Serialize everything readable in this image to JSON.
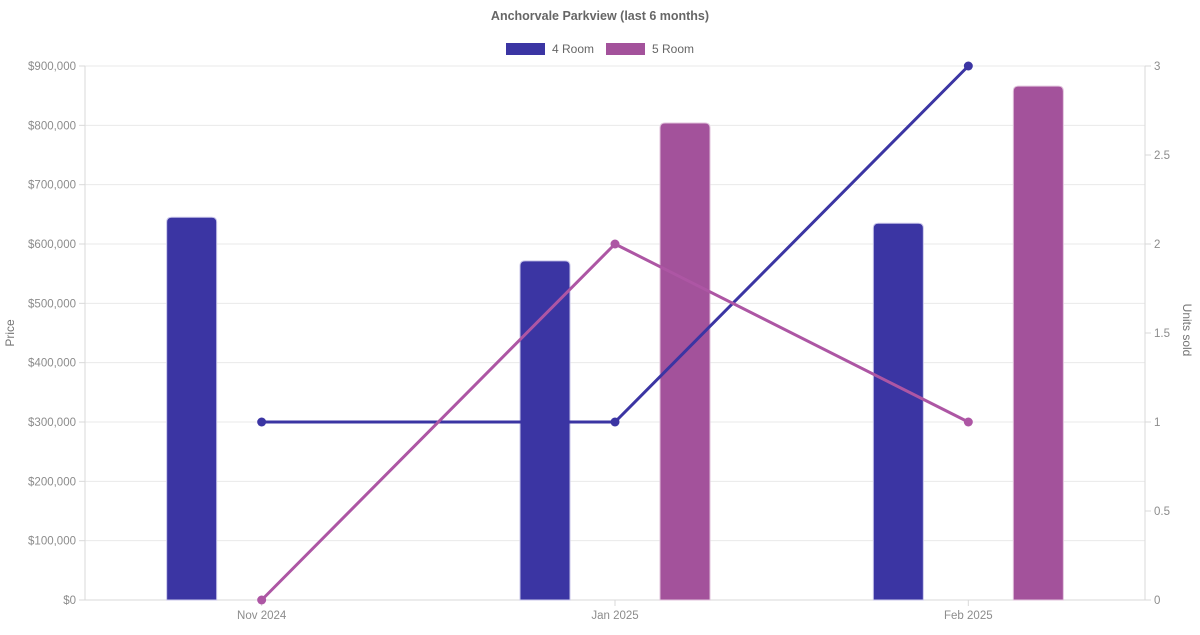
{
  "chart_data": {
    "type": "bar",
    "subtype": "combo-bar-line-dual-axis",
    "title": "Anchorvale Parkview (last 6 months)",
    "categories": [
      "Nov 2024",
      "Jan 2025",
      "Feb 2025"
    ],
    "series": [
      {
        "name": "4 Room",
        "render": "bar",
        "axis": "left",
        "values": [
          645000,
          571500,
          635000
        ],
        "color": "#3B35A3",
        "border_color": "#c9c6ea"
      },
      {
        "name": "5 Room",
        "render": "bar",
        "axis": "left",
        "values": [
          null,
          804000,
          866000
        ],
        "color": "#A3529B",
        "border_color": "#e0c2db"
      },
      {
        "name": "4 Room",
        "render": "line",
        "axis": "right",
        "values": [
          1,
          1,
          3
        ],
        "color": "#3B35A3"
      },
      {
        "name": "5 Room",
        "render": "line",
        "axis": "right",
        "values": [
          0,
          2,
          1
        ],
        "color": "#AD56A4"
      }
    ],
    "legend": [
      {
        "label": "4 Room",
        "color": "#3B35A3"
      },
      {
        "label": "5 Room",
        "color": "#A3529B"
      }
    ],
    "legend_position": "top",
    "ylabel_left": "Price",
    "ylabel_right": "Units sold",
    "ylim_left": [
      0,
      900000
    ],
    "ylim_right": [
      0,
      3
    ],
    "yticks_left": [
      "$0",
      "$100,000",
      "$200,000",
      "$300,000",
      "$400,000",
      "$500,000",
      "$600,000",
      "$700,000",
      "$800,000",
      "$900,000"
    ],
    "ytick_step_left": 100000,
    "yticks_right": [
      "0",
      "0.5",
      "1",
      "1.5",
      "2",
      "2.5",
      "3"
    ],
    "ytick_step_right": 0.5,
    "grid": "horizontal",
    "colors": {
      "background": "#ffffff",
      "grid_line": "#eaeaea",
      "axis_border": "#d9d9d9",
      "tick_label": "#8c8c8c",
      "title_text": "#666666",
      "legend_text": "#666666",
      "axis_title_text": "#757575"
    }
  }
}
